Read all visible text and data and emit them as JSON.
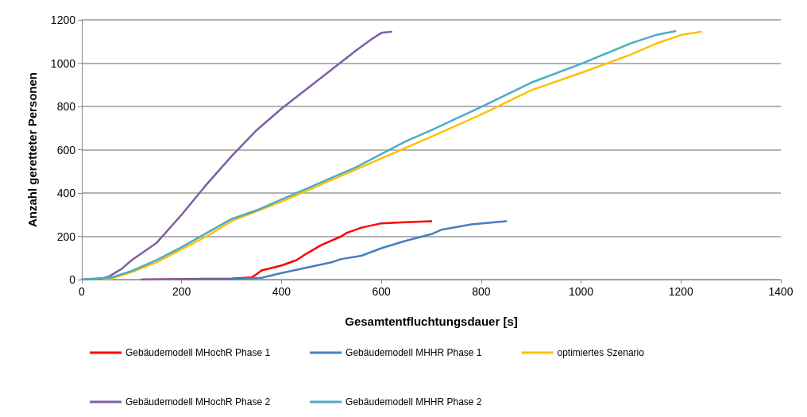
{
  "chart_data": {
    "type": "line",
    "xlabel": "Gesamtentfluchtungsdauer [s]",
    "ylabel": "Anzahl geretteter Personen",
    "xlim": [
      0,
      1400
    ],
    "xticks": [
      0,
      200,
      400,
      600,
      800,
      1000,
      1200,
      1400
    ],
    "ylim": [
      0,
      1200
    ],
    "yticks": [
      0,
      200,
      400,
      600,
      800,
      1000,
      1200
    ],
    "grid": "y",
    "legend": "bottom",
    "marker": "none",
    "line_style": "solid",
    "series": [
      {
        "name": "Gebäudemodell MHochR Phase 1",
        "color": "#ff0000",
        "x": [
          120,
          300,
          340,
          350,
          360,
          400,
          430,
          450,
          480,
          520,
          530,
          560,
          600,
          650,
          700
        ],
        "values": [
          0,
          5,
          10,
          25,
          42,
          65,
          90,
          120,
          160,
          200,
          215,
          240,
          260,
          265,
          270
        ]
      },
      {
        "name": "Gebäudemodell MHHR Phase 1",
        "color": "#4a7ebb",
        "x": [
          120,
          300,
          360,
          400,
          450,
          500,
          520,
          560,
          600,
          650,
          700,
          720,
          780,
          850
        ],
        "values": [
          0,
          3,
          8,
          30,
          55,
          80,
          95,
          110,
          145,
          180,
          210,
          230,
          255,
          270
        ]
      },
      {
        "name": "optimiertes Szenario",
        "color": "#ffc000",
        "x": [
          0,
          60,
          100,
          150,
          200,
          250,
          300,
          350,
          400,
          450,
          500,
          550,
          600,
          650,
          700,
          800,
          900,
          1000,
          1100,
          1150,
          1200,
          1240
        ],
        "values": [
          0,
          5,
          35,
          80,
          140,
          200,
          270,
          315,
          360,
          410,
          460,
          510,
          560,
          610,
          660,
          763,
          875,
          955,
          1040,
          1090,
          1130,
          1145
        ]
      },
      {
        "name": "Gebäudemodell MHochR Phase 2",
        "color": "#7f60a0",
        "x": [
          0,
          40,
          55,
          80,
          100,
          150,
          200,
          250,
          300,
          350,
          400,
          450,
          500,
          550,
          580,
          600,
          620
        ],
        "values": [
          0,
          5,
          15,
          50,
          90,
          170,
          300,
          440,
          570,
          690,
          790,
          880,
          970,
          1060,
          1110,
          1140,
          1145
        ]
      },
      {
        "name": "Gebäudemodell MHHR Phase 2",
        "color": "#4bacc6",
        "x": [
          0,
          60,
          100,
          150,
          200,
          250,
          300,
          350,
          400,
          450,
          500,
          550,
          600,
          650,
          700,
          800,
          900,
          1000,
          1100,
          1150,
          1189
        ],
        "values": [
          0,
          10,
          40,
          90,
          150,
          215,
          280,
          320,
          370,
          420,
          470,
          520,
          580,
          640,
          690,
          798,
          910,
          997,
          1092,
          1130,
          1148
        ]
      }
    ]
  }
}
